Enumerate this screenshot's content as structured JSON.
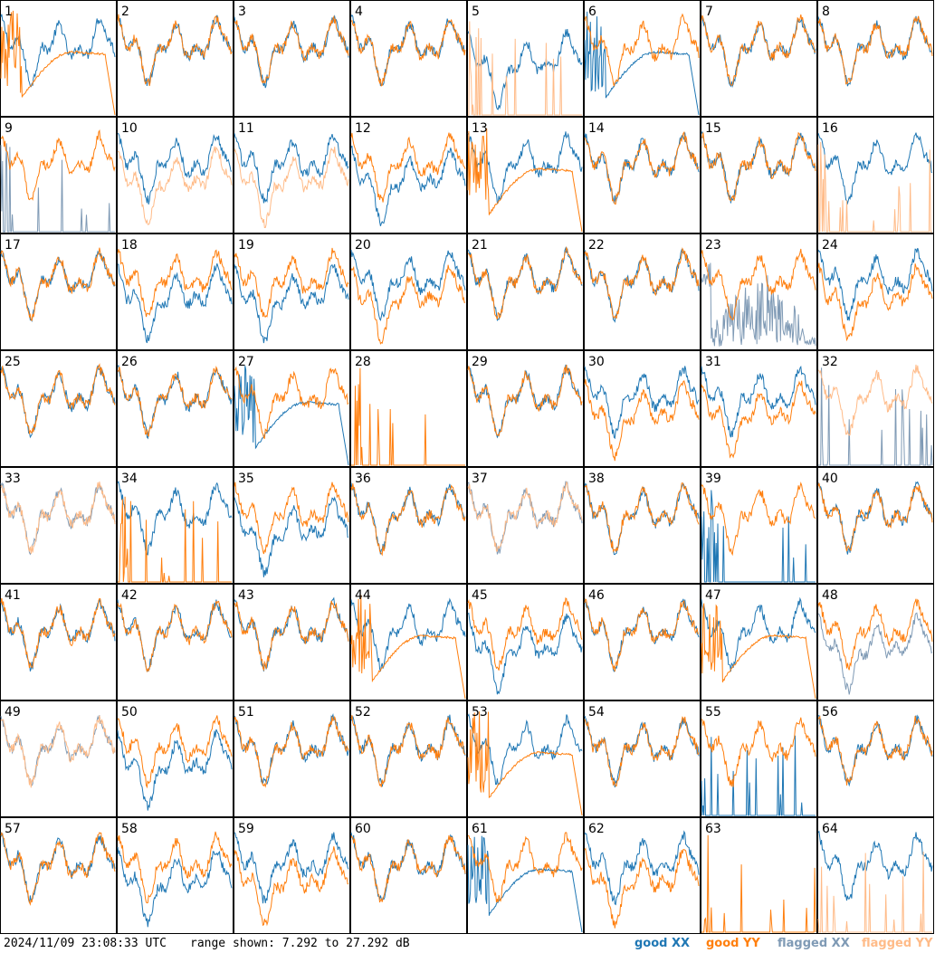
{
  "chart_data": {
    "type": "line",
    "grid": "8x8 small multiples",
    "y_range_db": [
      7.292,
      27.292
    ],
    "panels": [
      {
        "id": "1",
        "xx": "good",
        "yy": "good",
        "xx_shape": "normal",
        "yy_shape": "bowl"
      },
      {
        "id": "2",
        "xx": "good",
        "yy": "good",
        "xx_shape": "normal",
        "yy_shape": "normal"
      },
      {
        "id": "3",
        "xx": "good",
        "yy": "good",
        "xx_shape": "normal",
        "yy_shape": "normal"
      },
      {
        "id": "4",
        "xx": "good",
        "yy": "good",
        "xx_shape": "normal",
        "yy_shape": "normal"
      },
      {
        "id": "5",
        "xx": "good",
        "yy": "flagged",
        "xx_shape": "low",
        "yy_shape": "spikes"
      },
      {
        "id": "6",
        "xx": "good",
        "yy": "good",
        "xx_shape": "bowl",
        "yy_shape": "normal"
      },
      {
        "id": "7",
        "xx": "good",
        "yy": "good",
        "xx_shape": "normal",
        "yy_shape": "normal"
      },
      {
        "id": "8",
        "xx": "good",
        "yy": "good",
        "xx_shape": "normal",
        "yy_shape": "normal"
      },
      {
        "id": "9",
        "xx": "flagged",
        "yy": "good",
        "xx_shape": "spikes",
        "yy_shape": "normal"
      },
      {
        "id": "10",
        "xx": "good",
        "yy": "flagged",
        "xx_shape": "normal",
        "yy_shape": "low"
      },
      {
        "id": "11",
        "xx": "good",
        "yy": "flagged",
        "xx_shape": "normal",
        "yy_shape": "low"
      },
      {
        "id": "12",
        "xx": "good",
        "yy": "good",
        "xx_shape": "low",
        "yy_shape": "normal"
      },
      {
        "id": "13",
        "xx": "good",
        "yy": "good",
        "xx_shape": "normal",
        "yy_shape": "bowl"
      },
      {
        "id": "14",
        "xx": "good",
        "yy": "good",
        "xx_shape": "normal",
        "yy_shape": "normal"
      },
      {
        "id": "15",
        "xx": "good",
        "yy": "good",
        "xx_shape": "normal",
        "yy_shape": "normal"
      },
      {
        "id": "16",
        "xx": "good",
        "yy": "flagged",
        "xx_shape": "normal",
        "yy_shape": "spikes"
      },
      {
        "id": "17",
        "xx": "good",
        "yy": "good",
        "xx_shape": "normal",
        "yy_shape": "normal"
      },
      {
        "id": "18",
        "xx": "good",
        "yy": "good",
        "xx_shape": "low",
        "yy_shape": "normal"
      },
      {
        "id": "19",
        "xx": "good",
        "yy": "good",
        "xx_shape": "low",
        "yy_shape": "normal"
      },
      {
        "id": "20",
        "xx": "good",
        "yy": "good",
        "xx_shape": "normal",
        "yy_shape": "low"
      },
      {
        "id": "21",
        "xx": "good",
        "yy": "good",
        "xx_shape": "normal",
        "yy_shape": "normal"
      },
      {
        "id": "22",
        "xx": "good",
        "yy": "good",
        "xx_shape": "normal",
        "yy_shape": "normal"
      },
      {
        "id": "23",
        "xx": "flagged",
        "yy": "good",
        "xx_shape": "noisy",
        "yy_shape": "normal"
      },
      {
        "id": "24",
        "xx": "good",
        "yy": "good",
        "xx_shape": "normal",
        "yy_shape": "low"
      },
      {
        "id": "25",
        "xx": "good",
        "yy": "good",
        "xx_shape": "normal",
        "yy_shape": "normal"
      },
      {
        "id": "26",
        "xx": "good",
        "yy": "good",
        "xx_shape": "normal",
        "yy_shape": "normal"
      },
      {
        "id": "27",
        "xx": "good",
        "yy": "good",
        "xx_shape": "bowl",
        "yy_shape": "normal"
      },
      {
        "id": "28",
        "xx": "none",
        "yy": "good",
        "xx_shape": "none",
        "yy_shape": "spikes"
      },
      {
        "id": "29",
        "xx": "good",
        "yy": "good",
        "xx_shape": "normal",
        "yy_shape": "normal"
      },
      {
        "id": "30",
        "xx": "good",
        "yy": "good",
        "xx_shape": "normal",
        "yy_shape": "low"
      },
      {
        "id": "31",
        "xx": "good",
        "yy": "good",
        "xx_shape": "normal",
        "yy_shape": "low"
      },
      {
        "id": "32",
        "xx": "flagged",
        "yy": "flagged",
        "xx_shape": "spikes",
        "yy_shape": "normal"
      },
      {
        "id": "33",
        "xx": "flagged",
        "yy": "flagged",
        "xx_shape": "normal",
        "yy_shape": "normal"
      },
      {
        "id": "34",
        "xx": "good",
        "yy": "good",
        "xx_shape": "normal",
        "yy_shape": "spikes"
      },
      {
        "id": "35",
        "xx": "good",
        "yy": "good",
        "xx_shape": "low",
        "yy_shape": "normal"
      },
      {
        "id": "36",
        "xx": "good",
        "yy": "good",
        "xx_shape": "normal",
        "yy_shape": "normal"
      },
      {
        "id": "37",
        "xx": "flagged",
        "yy": "flagged",
        "xx_shape": "normal",
        "yy_shape": "normal"
      },
      {
        "id": "38",
        "xx": "good",
        "yy": "good",
        "xx_shape": "normal",
        "yy_shape": "normal"
      },
      {
        "id": "39",
        "xx": "good",
        "yy": "good",
        "xx_shape": "spikes",
        "yy_shape": "normal"
      },
      {
        "id": "40",
        "xx": "good",
        "yy": "good",
        "xx_shape": "normal",
        "yy_shape": "normal"
      },
      {
        "id": "41",
        "xx": "good",
        "yy": "good",
        "xx_shape": "normal",
        "yy_shape": "normal"
      },
      {
        "id": "42",
        "xx": "good",
        "yy": "good",
        "xx_shape": "normal",
        "yy_shape": "normal"
      },
      {
        "id": "43",
        "xx": "good",
        "yy": "good",
        "xx_shape": "normal",
        "yy_shape": "normal"
      },
      {
        "id": "44",
        "xx": "good",
        "yy": "good",
        "xx_shape": "normal",
        "yy_shape": "bowl"
      },
      {
        "id": "45",
        "xx": "good",
        "yy": "good",
        "xx_shape": "low",
        "yy_shape": "normal"
      },
      {
        "id": "46",
        "xx": "good",
        "yy": "good",
        "xx_shape": "normal",
        "yy_shape": "normal"
      },
      {
        "id": "47",
        "xx": "good",
        "yy": "good",
        "xx_shape": "normal",
        "yy_shape": "bowl"
      },
      {
        "id": "48",
        "xx": "flagged",
        "yy": "good",
        "xx_shape": "low",
        "yy_shape": "normal"
      },
      {
        "id": "49",
        "xx": "flagged",
        "yy": "flagged",
        "xx_shape": "normal",
        "yy_shape": "normal"
      },
      {
        "id": "50",
        "xx": "good",
        "yy": "good",
        "xx_shape": "low",
        "yy_shape": "normal"
      },
      {
        "id": "51",
        "xx": "good",
        "yy": "good",
        "xx_shape": "normal",
        "yy_shape": "normal"
      },
      {
        "id": "52",
        "xx": "good",
        "yy": "good",
        "xx_shape": "normal",
        "yy_shape": "normal"
      },
      {
        "id": "53",
        "xx": "good",
        "yy": "good",
        "xx_shape": "normal",
        "yy_shape": "bowl"
      },
      {
        "id": "54",
        "xx": "good",
        "yy": "good",
        "xx_shape": "normal",
        "yy_shape": "normal"
      },
      {
        "id": "55",
        "xx": "good",
        "yy": "good",
        "xx_shape": "spikes",
        "yy_shape": "normal"
      },
      {
        "id": "56",
        "xx": "good",
        "yy": "good",
        "xx_shape": "normal",
        "yy_shape": "normal"
      },
      {
        "id": "57",
        "xx": "good",
        "yy": "good",
        "xx_shape": "normal",
        "yy_shape": "normal"
      },
      {
        "id": "58",
        "xx": "good",
        "yy": "good",
        "xx_shape": "low",
        "yy_shape": "normal"
      },
      {
        "id": "59",
        "xx": "good",
        "yy": "good",
        "xx_shape": "normal",
        "yy_shape": "low"
      },
      {
        "id": "60",
        "xx": "good",
        "yy": "good",
        "xx_shape": "normal",
        "yy_shape": "normal"
      },
      {
        "id": "61",
        "xx": "good",
        "yy": "good",
        "xx_shape": "bowl",
        "yy_shape": "normal"
      },
      {
        "id": "62",
        "xx": "good",
        "yy": "good",
        "xx_shape": "normal",
        "yy_shape": "low"
      },
      {
        "id": "63",
        "xx": "none",
        "yy": "good",
        "xx_shape": "none",
        "yy_shape": "spikes"
      },
      {
        "id": "64",
        "xx": "good",
        "yy": "flagged",
        "xx_shape": "normal",
        "yy_shape": "spikes"
      }
    ]
  },
  "footer": {
    "timestamp": "2024/11/09 23:08:33 UTC",
    "range_text": "range shown: 7.292 to 27.292 dB"
  },
  "legend": [
    {
      "key": "good_xx",
      "label": "good XX",
      "color": "#1f77b4"
    },
    {
      "key": "good_yy",
      "label": "good YY",
      "color": "#ff7f0e"
    },
    {
      "key": "flagged_xx",
      "label": "flagged XX",
      "color": "#7f9ab5"
    },
    {
      "key": "flagged_yy",
      "label": "flagged YY",
      "color": "#ffbb88"
    }
  ]
}
